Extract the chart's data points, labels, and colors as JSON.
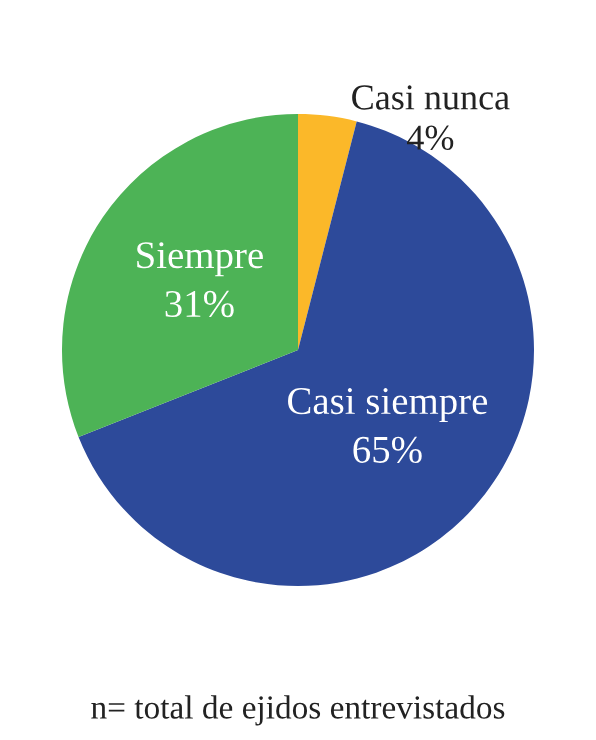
{
  "chart_data": {
    "type": "pie",
    "categories": [
      "Casi nunca",
      "Casi siempre",
      "Siempre"
    ],
    "values": [
      4,
      65,
      31
    ],
    "value_labels": [
      "4%",
      "65%",
      "31%"
    ],
    "colors": [
      "#fbb829",
      "#2d4a9a",
      "#4db356"
    ],
    "annotations": [
      "n= total de ejidos entrevistados"
    ]
  }
}
